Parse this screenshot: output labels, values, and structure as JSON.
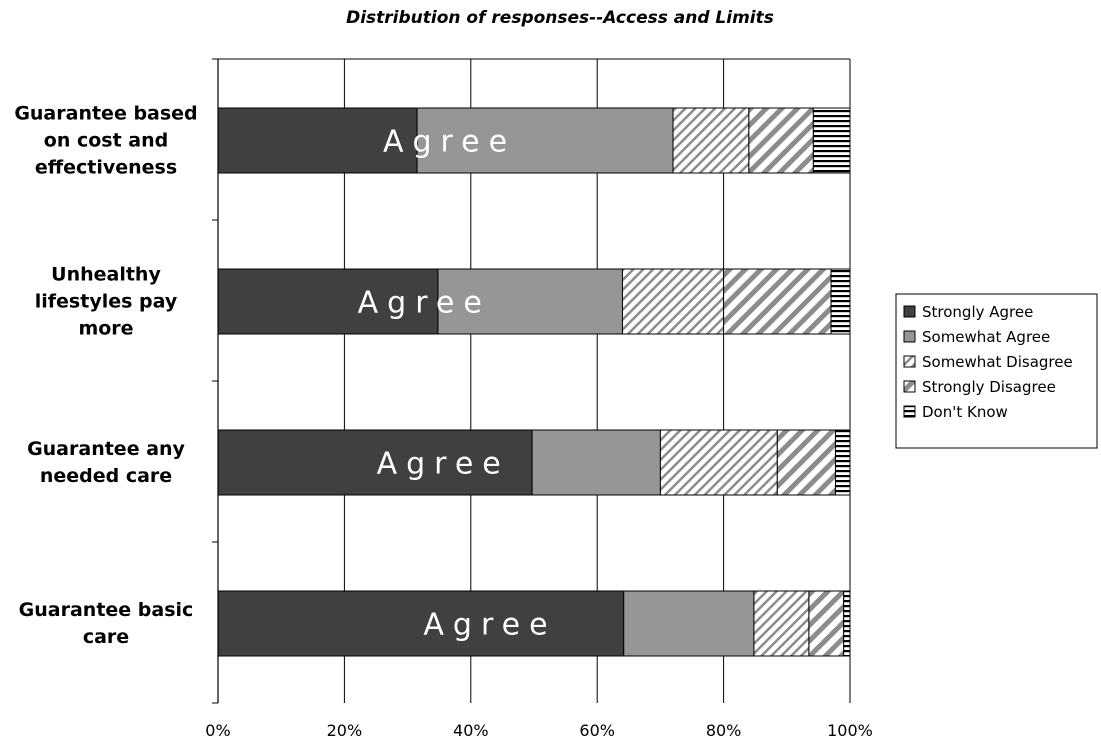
{
  "chart_data": {
    "type": "bar",
    "orientation": "horizontal",
    "stacked": "percent",
    "title": "Distribution of responses--Access and Limits",
    "categories": [
      "Guarantee based on cost and effectiveness",
      "Unhealthy lifestyles pay more",
      "Guarantee any needed care",
      "Guarantee basic care"
    ],
    "category_lines": [
      [
        "Guarantee based",
        "on cost and",
        "effectiveness"
      ],
      [
        "Unhealthy",
        "lifestyles pay",
        "more"
      ],
      [
        "Guarantee any",
        "needed care"
      ],
      [
        "Guarantee basic",
        "care"
      ]
    ],
    "series": [
      {
        "name": "Strongly Agree",
        "values": [
          31.5,
          34.8,
          49.7,
          64.2
        ],
        "color": "#404040",
        "pattern": "solid"
      },
      {
        "name": "Somewhat Agree",
        "values": [
          40.5,
          29.2,
          20.3,
          20.6
        ],
        "color": "#969696",
        "pattern": "solid"
      },
      {
        "name": "Somewhat Disagree",
        "values": [
          12.0,
          16.0,
          18.5,
          8.7
        ],
        "color": "#ffffff",
        "pattern": "fine-diagonal"
      },
      {
        "name": "Strongly Disagree",
        "values": [
          10.2,
          17.0,
          9.2,
          5.5
        ],
        "color": "#ffffff",
        "pattern": "wide-diagonal"
      },
      {
        "name": "Don't Know",
        "values": [
          5.8,
          3.0,
          2.3,
          1.0
        ],
        "color": "#ffffff",
        "pattern": "horizontal-lines"
      }
    ],
    "bar_annotation": "Agree",
    "xlim": [
      0,
      100
    ],
    "xticks": [
      "0%",
      "20%",
      "40%",
      "60%",
      "80%",
      "100%"
    ],
    "xlabel": "",
    "ylabel": "",
    "grid": "vertical",
    "legend_position": "right"
  }
}
